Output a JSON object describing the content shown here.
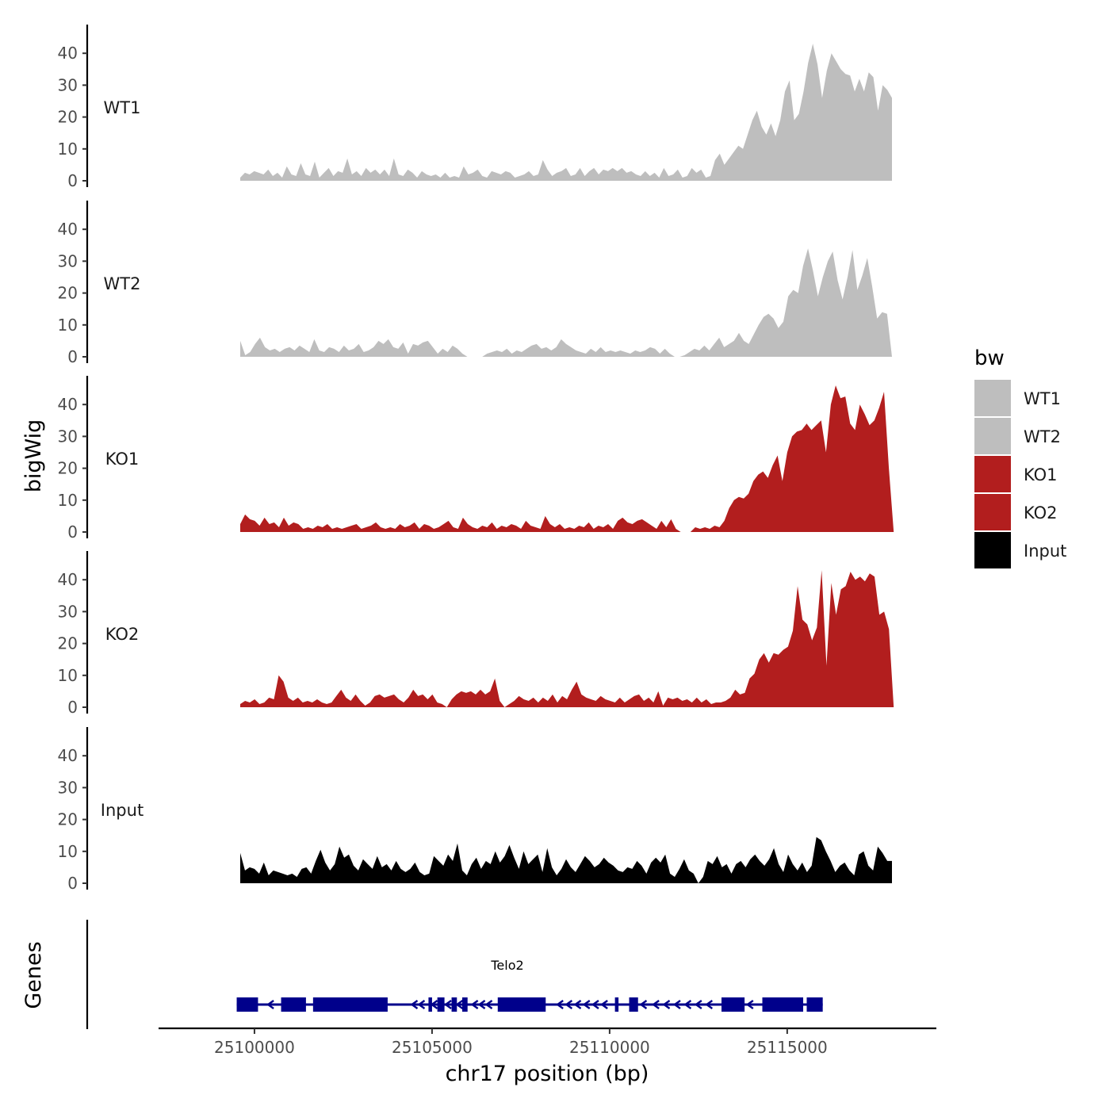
{
  "chart_data": {
    "type": "area",
    "ylabel": "bigWig",
    "xlabel": "chr17 position (bp)",
    "gene_track_label": "Genes",
    "xlim": [
      25097300,
      25119200
    ],
    "ylim": [
      0,
      49
    ],
    "y_ticks": [
      0,
      10,
      20,
      30,
      40
    ],
    "x_ticks": [
      25100000,
      25105000,
      25110000,
      25115000
    ],
    "x_tick_labels": [
      "25100000",
      "25105000",
      "25110000",
      "25115000"
    ],
    "legend": {
      "title": "bw",
      "position": "right",
      "entries": [
        {
          "label": "WT1",
          "color": "#bebebe"
        },
        {
          "label": "WT2",
          "color": "#bebebe"
        },
        {
          "label": "KO1",
          "color": "#b21e1e"
        },
        {
          "label": "KO2",
          "color": "#b21e1e"
        },
        {
          "label": "Input",
          "color": "#000000"
        }
      ]
    },
    "series": [
      {
        "name": "WT1",
        "color": "#bebebe",
        "x_start": 25099600,
        "x_end": 25117950,
        "values": [
          1,
          2.5,
          2,
          3,
          2.5,
          2,
          3.5,
          1.5,
          2.5,
          1,
          4.5,
          2,
          1.5,
          5.5,
          2,
          1.5,
          6,
          1,
          2.5,
          4,
          1.5,
          3,
          2.5,
          7,
          2,
          3,
          1.5,
          4,
          2.5,
          3.5,
          2,
          3.5,
          1.5,
          7,
          2,
          1.5,
          3.5,
          2.5,
          1,
          3,
          2,
          1.5,
          2,
          1,
          2.5,
          1,
          1.5,
          1,
          4.5,
          2,
          2.5,
          3.5,
          1.5,
          1,
          3,
          2.5,
          2,
          3,
          2.5,
          1,
          1.5,
          2,
          3,
          1.5,
          2,
          6.5,
          3.5,
          1.5,
          2.5,
          3,
          4,
          1.5,
          2,
          4,
          1.5,
          3,
          4,
          2,
          3.5,
          3,
          4,
          3,
          4,
          2.5,
          3,
          2,
          1.5,
          3,
          1.5,
          2.5,
          1,
          4,
          1.5,
          2,
          3.5,
          1,
          1.5,
          4,
          2.5,
          3.5,
          1,
          1.5,
          6.5,
          8.5,
          5,
          7,
          9,
          11,
          10,
          14.5,
          19,
          22,
          17,
          14.5,
          18,
          14,
          19,
          28,
          31.5,
          19,
          21,
          28,
          37,
          43,
          36.5,
          26,
          34.5,
          40,
          37.5,
          35,
          33.5,
          33,
          28,
          32,
          28,
          34,
          32.5,
          22,
          30,
          28.5,
          26
        ]
      },
      {
        "name": "WT2",
        "color": "#bebebe",
        "x_start": 25099600,
        "x_end": 25117950,
        "values": [
          5,
          0.5,
          1.5,
          4,
          6,
          3,
          2,
          2.5,
          1.5,
          2.5,
          3,
          2,
          3.5,
          2.5,
          1.5,
          5.5,
          2,
          1.5,
          3,
          2.5,
          1.5,
          3.5,
          2,
          2.5,
          4,
          1.5,
          2,
          3,
          5,
          4,
          5.5,
          3,
          2.5,
          4.5,
          1,
          4,
          3.5,
          4.5,
          5,
          3,
          1,
          2.5,
          1.5,
          3.5,
          2.5,
          1,
          0,
          0,
          0,
          0,
          1,
          1.5,
          2,
          1.5,
          2.5,
          1,
          2,
          1.5,
          2.5,
          3.5,
          4,
          2.5,
          3,
          2,
          3,
          5.5,
          4,
          3,
          2,
          1.5,
          1,
          2.5,
          1.5,
          3,
          1.5,
          2,
          1.5,
          2,
          1.5,
          1,
          2,
          1.5,
          2,
          3,
          2.5,
          1,
          2.5,
          1,
          0,
          0,
          0.5,
          1.5,
          2.5,
          2,
          3.5,
          2,
          4,
          6,
          3,
          4,
          5,
          7.5,
          5,
          4,
          7,
          10,
          12.5,
          13.5,
          12,
          9,
          11,
          19,
          21,
          20,
          28.5,
          34,
          27,
          19,
          25,
          30,
          33,
          24,
          18,
          25,
          33.5,
          21,
          25.5,
          31,
          22,
          12,
          14,
          13.5,
          0
        ]
      },
      {
        "name": "KO1",
        "color": "#b21e1e",
        "x_start": 25099600,
        "x_end": 25118000,
        "values": [
          2.5,
          5.5,
          4,
          3.5,
          2,
          4.5,
          2.5,
          3,
          1.5,
          4.5,
          2,
          3,
          2.5,
          1,
          1.5,
          1,
          2,
          1.5,
          2.5,
          1,
          1.5,
          1,
          1.5,
          2,
          2.5,
          1,
          1.5,
          2,
          3,
          1.5,
          1,
          1.5,
          1,
          2.5,
          1.5,
          2,
          3,
          1,
          2.5,
          2,
          1,
          1.5,
          2.5,
          3.5,
          1.5,
          1,
          4.5,
          2.5,
          1.5,
          1,
          2,
          1.5,
          3,
          1,
          2,
          1.5,
          2.5,
          2,
          1,
          3.5,
          2,
          1.5,
          1,
          5,
          2.5,
          1.5,
          2.5,
          1,
          1.5,
          1,
          2,
          1.5,
          3,
          1,
          2,
          1.5,
          2.5,
          1,
          3.5,
          4.5,
          3,
          2.5,
          3.5,
          4,
          3,
          2,
          1,
          3.5,
          1.5,
          4,
          1,
          0,
          0,
          0,
          1.5,
          1,
          1.5,
          1,
          2,
          1.5,
          3.5,
          7.5,
          10,
          11,
          10.5,
          12,
          16,
          18,
          19,
          17,
          21,
          24,
          16,
          25,
          30,
          31.5,
          32,
          34,
          32,
          33.5,
          35,
          25,
          40,
          46,
          42,
          42.5,
          34,
          32,
          40,
          37,
          33.5,
          35,
          39,
          44,
          20,
          0
        ]
      },
      {
        "name": "KO2",
        "color": "#b21e1e",
        "x_start": 25099600,
        "x_end": 25118000,
        "values": [
          1,
          2,
          1.5,
          2.5,
          1,
          1.5,
          3,
          2.5,
          10,
          8,
          3,
          2,
          3,
          1.5,
          2,
          1.5,
          2.5,
          1.5,
          1,
          1.5,
          3.5,
          5.5,
          3,
          2,
          4,
          2,
          0.5,
          1.5,
          3.5,
          4,
          3,
          3.5,
          4,
          2.5,
          1.5,
          3,
          5.5,
          3.5,
          4,
          2.5,
          4,
          1.5,
          1,
          0,
          2.5,
          4,
          5,
          4.5,
          5,
          4,
          5.5,
          4,
          5,
          9,
          2,
          0,
          1,
          2,
          3.5,
          2.5,
          2,
          3,
          1.5,
          3,
          2,
          4,
          1.5,
          3.5,
          2.5,
          5.5,
          8,
          4,
          3,
          2.5,
          2,
          3.5,
          2.5,
          2,
          1.5,
          3,
          1.5,
          2.5,
          3.5,
          4,
          2,
          3,
          1.5,
          5,
          0.5,
          3,
          2.5,
          3,
          2,
          2.5,
          1.5,
          3,
          1.5,
          2.5,
          1,
          1.5,
          1.5,
          2,
          3,
          5.5,
          4,
          4.5,
          9,
          10.5,
          15,
          17,
          14,
          17,
          16.5,
          18,
          19,
          24,
          38,
          27.5,
          26,
          21,
          25,
          43,
          13,
          39,
          29,
          37,
          38,
          42.5,
          40,
          41,
          39.5,
          42,
          41,
          29,
          30,
          24.5,
          0
        ]
      },
      {
        "name": "Input",
        "color": "#000000",
        "x_start": 25099600,
        "x_end": 25117950,
        "values": [
          9.5,
          4,
          5,
          4.5,
          3,
          6.5,
          2.5,
          4,
          3.5,
          3,
          2.5,
          3,
          2,
          4.5,
          5,
          3,
          7,
          10.5,
          6.5,
          4,
          6,
          11.5,
          8,
          9,
          5.5,
          4,
          7.5,
          6,
          4.5,
          8.5,
          5,
          6,
          4,
          7,
          4.5,
          3.5,
          4.5,
          6.5,
          3.5,
          2.5,
          3,
          8.5,
          7,
          5.5,
          9,
          7,
          12.5,
          4,
          2.5,
          6,
          8,
          4.5,
          7,
          6,
          10,
          6.5,
          8.5,
          12,
          8,
          4.5,
          10,
          6,
          7.5,
          9,
          3.5,
          11,
          5,
          2.5,
          4.5,
          7.5,
          5,
          3.5,
          6,
          8.5,
          7,
          5,
          6,
          8,
          6.5,
          5.5,
          4,
          3.5,
          5,
          4.5,
          7,
          5.5,
          3,
          6.5,
          8,
          6.5,
          9,
          3,
          2,
          4.5,
          7.5,
          4,
          3,
          0,
          2,
          7,
          6,
          8.5,
          5,
          6,
          3,
          6,
          7,
          5,
          7.5,
          9,
          7,
          5.5,
          7.5,
          11,
          6,
          3.5,
          9,
          6,
          4,
          6.5,
          3.5,
          5.5,
          14.5,
          13.5,
          10,
          7,
          3.5,
          5.5,
          6.5,
          4,
          2.5,
          9,
          10,
          5.5,
          4,
          11.5,
          9.5,
          7,
          7
        ]
      }
    ],
    "gene": {
      "name": "Telo2",
      "strand": "-",
      "color": "#00008b",
      "start": 25099500,
      "end": 25116000,
      "exons": [
        [
          25099500,
          25100100
        ],
        [
          25100750,
          25101450
        ],
        [
          25101650,
          25103750
        ],
        [
          25104900,
          25105000
        ],
        [
          25105150,
          25105350
        ],
        [
          25105550,
          25105700
        ],
        [
          25105850,
          25106000
        ],
        [
          25106850,
          25108200
        ],
        [
          25110150,
          25110250
        ],
        [
          25110550,
          25110800
        ],
        [
          25113150,
          25113800
        ],
        [
          25114300,
          25115450
        ],
        [
          25115550,
          25116000
        ]
      ],
      "arrows": [
        25100450,
        25104500,
        25104700,
        25105060,
        25105450,
        25105770,
        25106200,
        25106400,
        25106600,
        25108600,
        25108850,
        25109100,
        25109350,
        25109600,
        25109850,
        25110950,
        25111300,
        25111600,
        25111900,
        25112200,
        25112500,
        25112800,
        25113950
      ]
    }
  }
}
